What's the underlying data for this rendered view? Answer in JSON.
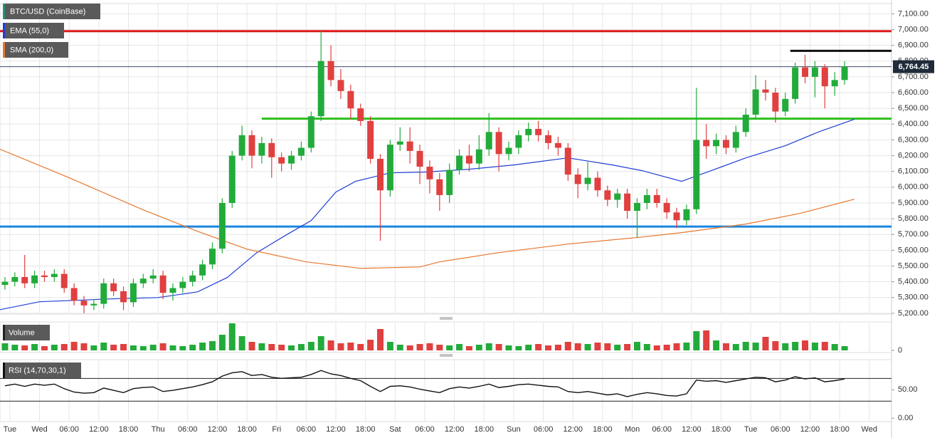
{
  "chart_data": [
    {
      "type": "candlestick",
      "title": "BTC/USD (CoinBase)",
      "up_color": "#22ab3b",
      "down_color": "#e0403f",
      "x": [
        -7,
        -5,
        -3,
        -1,
        1,
        3,
        5,
        7,
        9,
        11,
        13,
        15,
        17,
        19,
        21,
        23,
        25,
        27,
        29,
        31,
        33,
        35,
        37,
        39,
        41,
        43,
        45,
        47,
        49,
        51,
        53,
        55,
        57,
        59,
        61,
        63,
        65,
        67,
        69,
        71,
        73,
        75,
        77,
        79,
        81,
        83,
        85,
        87,
        89,
        91,
        93,
        95,
        97,
        99,
        101,
        103,
        105,
        107,
        109,
        111,
        113,
        115,
        117,
        119,
        121,
        123,
        125,
        127,
        129,
        131,
        133,
        135,
        137,
        139,
        141,
        143,
        145,
        147,
        149,
        151,
        153,
        155,
        157,
        159,
        161,
        163
      ],
      "open": [
        5380,
        5400,
        5430,
        5390,
        5440,
        5430,
        5450,
        5360,
        5280,
        5250,
        5260,
        5390,
        5340,
        5270,
        5390,
        5420,
        5440,
        5330,
        5360,
        5400,
        5440,
        5510,
        5610,
        5900,
        6200,
        6330,
        6200,
        6280,
        6190,
        6150,
        6200,
        6250,
        6450,
        6800,
        6680,
        6610,
        6500,
        6420,
        6180,
        5980,
        6270,
        6290,
        6230,
        6130,
        6050,
        5950,
        6110,
        6200,
        6150,
        6240,
        6350,
        6210,
        6250,
        6330,
        6370,
        6330,
        6280,
        6250,
        6080,
        6020,
        6060,
        5980,
        5920,
        5960,
        5850,
        5900,
        5950,
        5900,
        5840,
        5790,
        5860,
        6300,
        6260,
        6300,
        6250,
        6350,
        6460,
        6620,
        6600,
        6480,
        6560,
        6760,
        6700,
        6760,
        6640,
        6680
      ],
      "high": [
        5430,
        5460,
        5570,
        5470,
        5470,
        5480,
        5480,
        5390,
        5310,
        5290,
        5420,
        5420,
        5370,
        5420,
        5450,
        5480,
        5470,
        5390,
        5430,
        5470,
        5540,
        5650,
        5930,
        6230,
        6390,
        6360,
        6320,
        6310,
        6220,
        6230,
        6290,
        6480,
        6990,
        6900,
        6750,
        6650,
        6530,
        6450,
        6210,
        6300,
        6380,
        6380,
        6270,
        6170,
        6090,
        6150,
        6240,
        6270,
        6330,
        6470,
        6380,
        6290,
        6360,
        6410,
        6420,
        6360,
        6320,
        6280,
        6120,
        6160,
        6100,
        6010,
        5990,
        5990,
        5930,
        5990,
        5990,
        5930,
        5870,
        5890,
        6630,
        6400,
        6340,
        6330,
        6390,
        6500,
        6710,
        6680,
        6630,
        6600,
        6790,
        6840,
        6800,
        6780,
        6730,
        6800
      ],
      "low": [
        5350,
        5370,
        5360,
        5360,
        5400,
        5400,
        5330,
        5250,
        5200,
        5220,
        5230,
        5310,
        5220,
        5240,
        5360,
        5390,
        5290,
        5280,
        5330,
        5370,
        5410,
        5480,
        5580,
        5870,
        6170,
        6120,
        6150,
        6060,
        6100,
        6110,
        6170,
        6220,
        6420,
        6640,
        6560,
        6430,
        6390,
        6150,
        5660,
        5940,
        6230,
        6150,
        6020,
        5960,
        5850,
        5900,
        6080,
        6100,
        6110,
        6200,
        6100,
        6170,
        6210,
        6290,
        6290,
        6240,
        6200,
        6040,
        5930,
        5980,
        5940,
        5880,
        5870,
        5800,
        5680,
        5860,
        5870,
        5800,
        5740,
        5760,
        5830,
        6180,
        6210,
        6210,
        6220,
        6320,
        6430,
        6550,
        6410,
        6450,
        6530,
        6660,
        6570,
        6500,
        6580,
        6650
      ],
      "close": [
        5400,
        5430,
        5390,
        5440,
        5430,
        5450,
        5360,
        5280,
        5250,
        5260,
        5390,
        5340,
        5270,
        5390,
        5420,
        5440,
        5330,
        5360,
        5400,
        5440,
        5510,
        5610,
        5900,
        6200,
        6330,
        6200,
        6280,
        6190,
        6150,
        6200,
        6250,
        6450,
        6800,
        6680,
        6610,
        6500,
        6420,
        6180,
        5980,
        6270,
        6290,
        6230,
        6130,
        6050,
        5950,
        6110,
        6200,
        6150,
        6240,
        6350,
        6210,
        6250,
        6330,
        6370,
        6330,
        6280,
        6250,
        6080,
        6020,
        6060,
        5980,
        5920,
        5960,
        5850,
        5900,
        5950,
        5900,
        5840,
        5790,
        5860,
        6300,
        6260,
        6300,
        6250,
        6350,
        6460,
        6620,
        6600,
        6480,
        6560,
        6760,
        6700,
        6760,
        6640,
        6680,
        6764.45
      ],
      "series": [
        {
          "name": "EMA (55,0)",
          "color": "#1f3fd6",
          "x": [
            -8,
            0,
            14,
            24,
            32,
            38,
            44,
            50,
            55,
            60,
            64,
            71,
            78,
            87,
            96,
            107,
            116,
            122,
            130,
            136,
            143,
            151,
            158,
            165
          ],
          "values": [
            5223,
            5273,
            5291,
            5300,
            5336,
            5427,
            5585,
            5698,
            5788,
            5969,
            6037,
            6091,
            6096,
            6114,
            6141,
            6186,
            6141,
            6105,
            6037,
            6105,
            6186,
            6263,
            6354,
            6431
          ]
        },
        {
          "name": "SMA (200,0)",
          "color": "#e8762c",
          "x": [
            -8,
            6,
            21,
            32,
            42,
            54,
            65,
            77,
            81,
            93,
            107,
            122,
            130,
            143,
            154,
            165
          ],
          "values": [
            6241,
            6060,
            5856,
            5720,
            5607,
            5526,
            5485,
            5494,
            5526,
            5585,
            5639,
            5684,
            5712,
            5766,
            5834,
            5924
          ]
        }
      ],
      "levels": [
        {
          "value": 6990,
          "color": "#e01919",
          "start": -8
        },
        {
          "value": 6865,
          "color": "#111111",
          "start": 152
        },
        {
          "value": 6435,
          "color": "#2ec01e",
          "start": 45
        },
        {
          "value": 5750,
          "color": "#1a86e0",
          "start": -8
        }
      ],
      "last_price": {
        "value": 6764.45,
        "label": "6,764.45"
      },
      "xlim": [
        -8,
        172.5
      ],
      "ylim": [
        5195,
        7165
      ],
      "yticks": [
        {
          "value": 5200,
          "label": "5,200.00"
        },
        {
          "value": 5300,
          "label": "5,300.00"
        },
        {
          "value": 5400,
          "label": "5,400.00"
        },
        {
          "value": 5500,
          "label": "5,500.00"
        },
        {
          "value": 5600,
          "label": "5,600.00"
        },
        {
          "value": 5700,
          "label": "5,700.00"
        },
        {
          "value": 5800,
          "label": "5,800.00"
        },
        {
          "value": 5900,
          "label": "5,900.00"
        },
        {
          "value": 6000,
          "label": "6,000.00"
        },
        {
          "value": 6100,
          "label": "6,100.00"
        },
        {
          "value": 6200,
          "label": "6,200.00"
        },
        {
          "value": 6300,
          "label": "6,300.00"
        },
        {
          "value": 6400,
          "label": "6,400.00"
        },
        {
          "value": 6500,
          "label": "6,500.00"
        },
        {
          "value": 6600,
          "label": "6,600.00"
        },
        {
          "value": 6700,
          "label": "6,700.00"
        },
        {
          "value": 6800,
          "label": "6,800.00"
        },
        {
          "value": 6900,
          "label": "6,900.00"
        },
        {
          "value": 7000,
          "label": "7,000.00"
        },
        {
          "value": 7100,
          "label": "7,100.00"
        }
      ],
      "grid": true
    },
    {
      "type": "bar",
      "title": "Volume",
      "values": [
        10,
        8,
        7,
        9,
        6,
        8,
        9,
        12,
        10,
        7,
        11,
        8,
        9,
        7,
        6,
        8,
        10,
        7,
        6,
        8,
        11,
        13,
        22,
        38,
        20,
        12,
        10,
        9,
        8,
        7,
        9,
        12,
        20,
        14,
        10,
        11,
        9,
        15,
        30,
        12,
        8,
        7,
        9,
        10,
        8,
        7,
        9,
        6,
        8,
        10,
        9,
        7,
        6,
        8,
        9,
        7,
        8,
        12,
        10,
        9,
        11,
        10,
        8,
        9,
        12,
        9,
        7,
        8,
        10,
        11,
        27,
        28,
        14,
        10,
        9,
        12,
        11,
        19,
        13,
        10,
        12,
        14,
        11,
        12,
        9,
        6
      ],
      "ylim": [
        -3,
        40
      ],
      "yticks": [
        0
      ]
    },
    {
      "type": "line",
      "title": "RSI (14,70,30,1)",
      "color": "#111111",
      "values": [
        57,
        60,
        56,
        60,
        58,
        60,
        52,
        46,
        44,
        45,
        53,
        49,
        45,
        52,
        54,
        55,
        47,
        49,
        52,
        55,
        59,
        64,
        74,
        80,
        82,
        75,
        77,
        72,
        70,
        71,
        72,
        77,
        84,
        78,
        75,
        70,
        66,
        56,
        47,
        56,
        57,
        55,
        51,
        48,
        45,
        52,
        55,
        53,
        56,
        60,
        54,
        56,
        59,
        60,
        58,
        56,
        55,
        47,
        45,
        47,
        44,
        41,
        43,
        38,
        42,
        45,
        43,
        40,
        39,
        43,
        67,
        65,
        66,
        63,
        66,
        69,
        72,
        71,
        64,
        67,
        73,
        69,
        71,
        64,
        66,
        69
      ],
      "bands": [
        70,
        30
      ],
      "ylim": [
        -6,
        103
      ],
      "yticks": [
        {
          "value": 0,
          "label": "0.00"
        },
        {
          "value": 50,
          "label": "50.00"
        }
      ],
      "xticks": [
        {
          "value": -6,
          "label": "Tue"
        },
        {
          "value": 0,
          "label": "Wed"
        },
        {
          "value": 6,
          "label": "06:00"
        },
        {
          "value": 12,
          "label": "12:00"
        },
        {
          "value": 18,
          "label": "18:00"
        },
        {
          "value": 24,
          "label": "Thu"
        },
        {
          "value": 30,
          "label": "06:00"
        },
        {
          "value": 36,
          "label": "12:00"
        },
        {
          "value": 42,
          "label": "18:00"
        },
        {
          "value": 48,
          "label": "Fri"
        },
        {
          "value": 54,
          "label": "06:00"
        },
        {
          "value": 60,
          "label": "12:00"
        },
        {
          "value": 66,
          "label": "18:00"
        },
        {
          "value": 72,
          "label": "Sat"
        },
        {
          "value": 78,
          "label": "06:00"
        },
        {
          "value": 84,
          "label": "12:00"
        },
        {
          "value": 90,
          "label": "18:00"
        },
        {
          "value": 96,
          "label": "Sun"
        },
        {
          "value": 102,
          "label": "06:00"
        },
        {
          "value": 108,
          "label": "12:00"
        },
        {
          "value": 114,
          "label": "18:00"
        },
        {
          "value": 120,
          "label": "Mon"
        },
        {
          "value": 126,
          "label": "06:00"
        },
        {
          "value": 132,
          "label": "12:00"
        },
        {
          "value": 138,
          "label": "18:00"
        },
        {
          "value": 144,
          "label": "Tue"
        },
        {
          "value": 150,
          "label": "06:00"
        },
        {
          "value": 156,
          "label": "12:00"
        },
        {
          "value": 162,
          "label": "18:00"
        },
        {
          "value": 168,
          "label": "Wed"
        }
      ]
    }
  ]
}
